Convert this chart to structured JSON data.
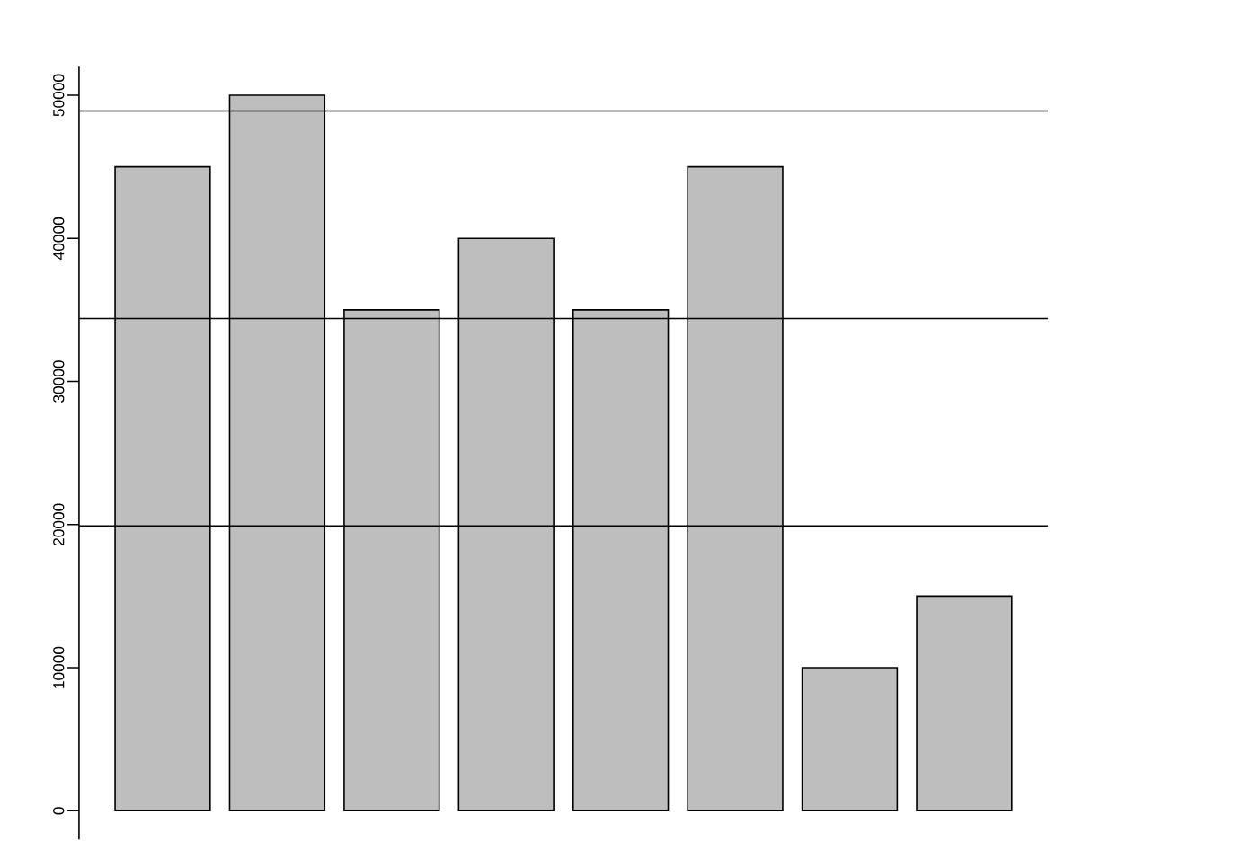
{
  "chart_data": {
    "type": "bar",
    "categories": [
      null,
      null,
      null,
      null,
      null,
      null,
      null,
      null
    ],
    "values": [
      45000,
      50000,
      35000,
      40000,
      35000,
      45000,
      10000,
      15000
    ],
    "color": "#bebebe",
    "ylim": [
      0,
      50000
    ],
    "yticks": [
      0,
      10000,
      20000,
      30000,
      40000,
      50000
    ],
    "ref_lines": [
      {
        "axis": "y",
        "value": 48900
      },
      {
        "axis": "y",
        "value": 34400
      },
      {
        "axis": "y",
        "value": 19900
      }
    ]
  }
}
